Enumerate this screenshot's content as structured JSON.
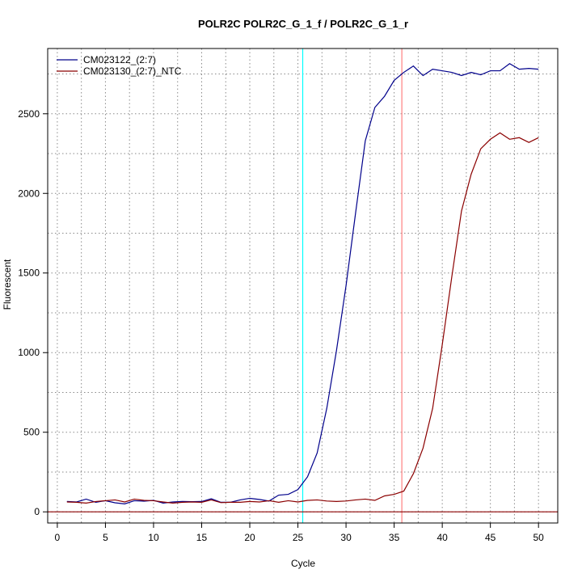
{
  "chart_data": {
    "type": "line",
    "title": "POLR2C  POLR2C_G_1_f / POLR2C_G_1_r",
    "xlabel": "Cycle",
    "ylabel": "Fluorescent",
    "xlim": [
      -1.0,
      52.0
    ],
    "ylim": [
      -70,
      2910
    ],
    "x_ticks": [
      0,
      5,
      10,
      15,
      20,
      25,
      30,
      35,
      40,
      45,
      50
    ],
    "y_ticks": [
      0,
      500,
      1000,
      1500,
      2000,
      2500
    ],
    "grid": true,
    "grid_style": "dotted",
    "legend_position": "top-left",
    "x": [
      1,
      2,
      3,
      4,
      5,
      6,
      7,
      8,
      9,
      10,
      11,
      12,
      13,
      14,
      15,
      16,
      17,
      18,
      19,
      20,
      21,
      22,
      23,
      24,
      25,
      26,
      27,
      28,
      29,
      30,
      31,
      32,
      33,
      34,
      35,
      36,
      37,
      38,
      39,
      40,
      41,
      42,
      43,
      44,
      45,
      46,
      47,
      48,
      49,
      50
    ],
    "series": [
      {
        "name": "CM023122_(2:7)",
        "color": "#00008b",
        "values": [
          65,
          62,
          80,
          60,
          70,
          57,
          50,
          70,
          67,
          72,
          55,
          62,
          65,
          64,
          65,
          82,
          60,
          60,
          75,
          85,
          78,
          68,
          105,
          110,
          140,
          220,
          370,
          650,
          1010,
          1420,
          1880,
          2330,
          2540,
          2610,
          2710,
          2760,
          2800,
          2740,
          2780,
          2770,
          2760,
          2740,
          2760,
          2745,
          2770,
          2770,
          2815,
          2780,
          2785,
          2780
        ]
      },
      {
        "name": "CM023130_(2:7)_NTC",
        "color": "#8b0000",
        "values": [
          62,
          60,
          55,
          65,
          70,
          75,
          62,
          80,
          72,
          70,
          62,
          55,
          60,
          62,
          60,
          75,
          58,
          60,
          60,
          65,
          62,
          70,
          60,
          70,
          62,
          72,
          75,
          68,
          65,
          68,
          75,
          80,
          72,
          100,
          110,
          130,
          240,
          400,
          650,
          1050,
          1480,
          1890,
          2120,
          2280,
          2340,
          2380,
          2340,
          2350,
          2320,
          2350
        ]
      }
    ],
    "vlines": [
      {
        "x": 25.5,
        "color": "#00ffff"
      },
      {
        "x": 35.8,
        "color": "#ff8080"
      }
    ],
    "hlines": [
      {
        "y": 0,
        "color": "#8b0000"
      }
    ]
  }
}
